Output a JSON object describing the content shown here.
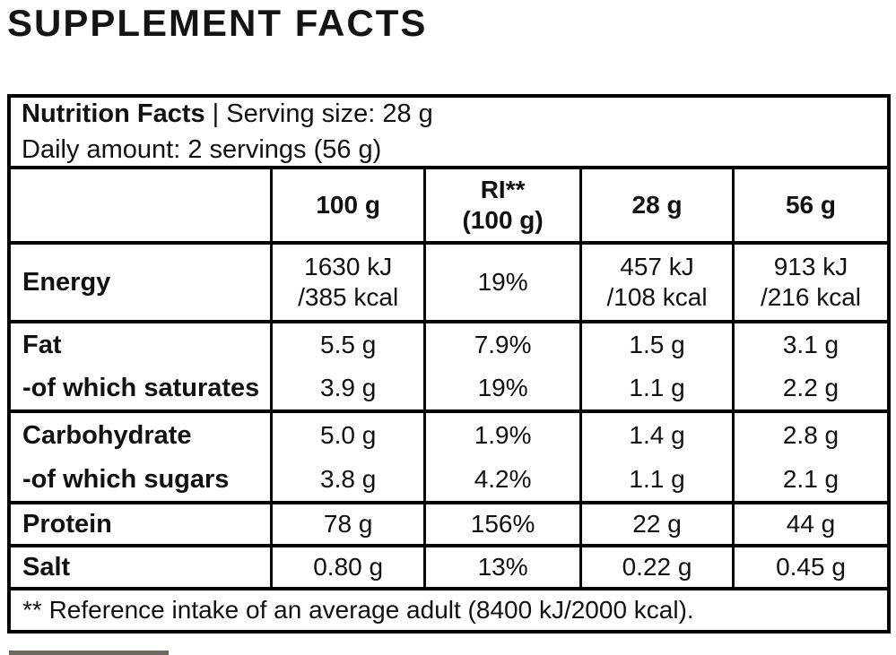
{
  "title": "SUPPLEMENT FACTS",
  "table": {
    "info": {
      "line1_bold": "Nutrition Facts",
      "line1_rest": " | Serving size: 28 g",
      "line2": "Daily amount: 2 servings (56 g)"
    },
    "columns": {
      "col_100g": "100 g",
      "col_ri_line1": "RI**",
      "col_ri_line2": "(100 g)",
      "col_28g": "28 g",
      "col_56g": "56 g"
    },
    "rows": {
      "energy": {
        "label": "Energy",
        "v100_line1": "1630 kJ",
        "v100_line2": "/385 kcal",
        "ri": "19%",
        "v28_line1": "457 kJ",
        "v28_line2": "/108 kcal",
        "v56_line1": "913 kJ",
        "v56_line2": "/216 kcal"
      },
      "fat": {
        "label": "Fat",
        "v100": "5.5 g",
        "ri": "7.9%",
        "v28": "1.5 g",
        "v56": "3.1 g"
      },
      "saturates": {
        "label": "-of which saturates",
        "v100": "3.9 g",
        "ri": "19%",
        "v28": "1.1 g",
        "v56": "2.2 g"
      },
      "carbohydrate": {
        "label": "Carbohydrate",
        "v100": "5.0 g",
        "ri": "1.9%",
        "v28": "1.4 g",
        "v56": "2.8 g"
      },
      "sugars": {
        "label": "-of which sugars",
        "v100": "3.8 g",
        "ri": "4.2%",
        "v28": "1.1 g",
        "v56": "2.1 g"
      },
      "protein": {
        "label": "Protein",
        "v100": "78 g",
        "ri": "156%",
        "v28": "22 g",
        "v56": "44 g"
      },
      "salt": {
        "label": "Salt",
        "v100": "0.80 g",
        "ri": "13%",
        "v28": "0.22 g",
        "v56": "0.45 g"
      }
    },
    "footnote": "** Reference intake of an average adult (8400 kJ/2000 kcal)."
  },
  "colors": {
    "text": "#111111",
    "border": "#000000",
    "background": "#ffffff",
    "partial_bar": "#6e6a63"
  }
}
